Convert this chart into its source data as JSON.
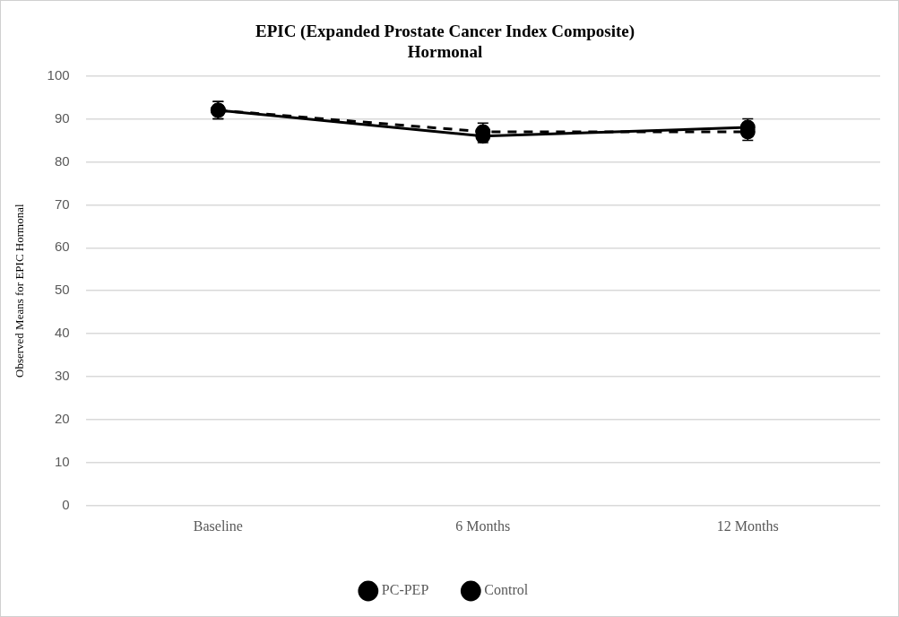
{
  "chart_data": {
    "type": "line",
    "title": "EPIC (Expanded Prostate Cancer Index Composite)\nHormonal",
    "ylabel": "Observed Means for EPIC Hormonal",
    "categories": [
      "Baseline",
      "6 Months",
      "12 Months"
    ],
    "series": [
      {
        "name": "PC-PEP",
        "color": "#000000",
        "line_style": "dashed",
        "values": [
          92,
          87,
          87
        ],
        "errors": [
          2,
          2,
          2
        ]
      },
      {
        "name": "Control",
        "color": "#000000",
        "line_style": "solid",
        "values": [
          92,
          86,
          88
        ],
        "errors": [
          2,
          1.5,
          2
        ]
      }
    ],
    "ylim": [
      0,
      100
    ],
    "yticks": [
      0,
      10,
      20,
      30,
      40,
      50,
      60,
      70,
      80,
      90,
      100
    ],
    "grid": "y",
    "legend": "bottom",
    "marker": "circle"
  }
}
